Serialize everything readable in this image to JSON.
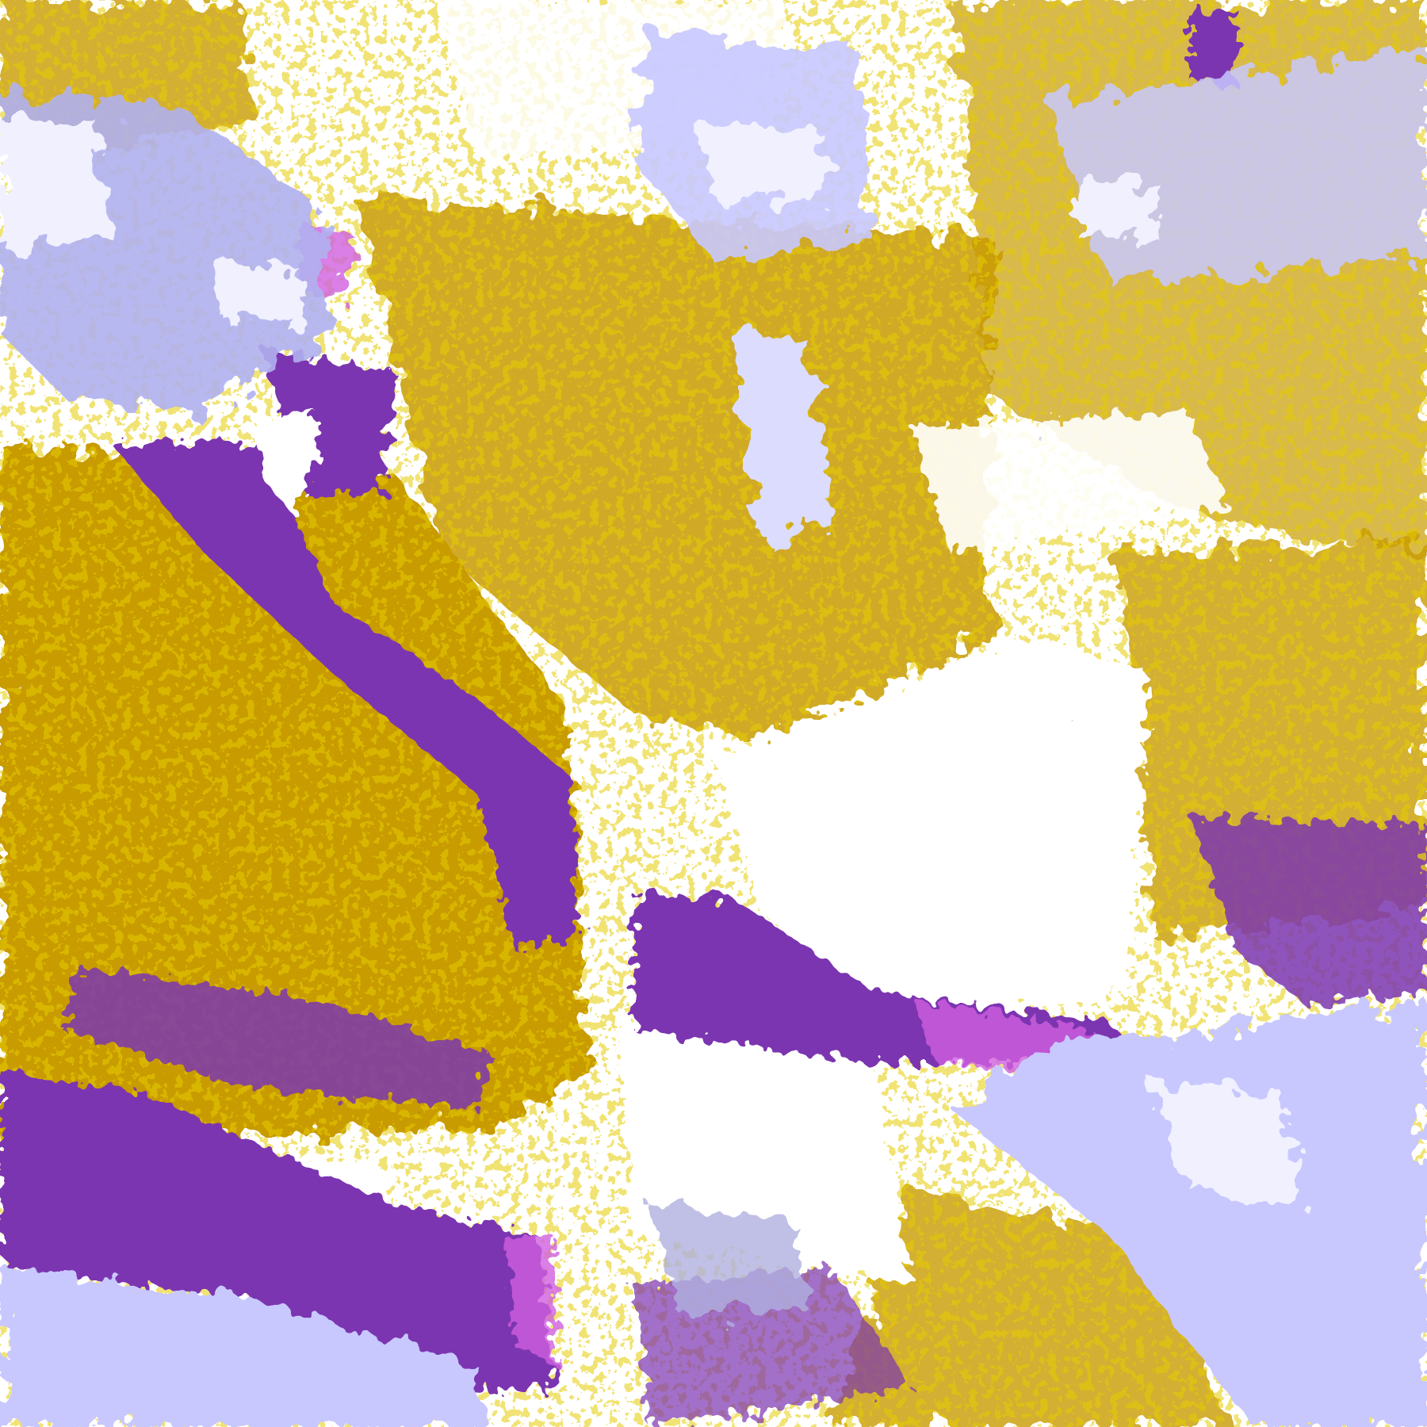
{
  "image": {
    "kind": "false-color satellite cloud classification",
    "palette": {
      "clear": "#ffffff",
      "low_cloud": "#c89b00",
      "mid_cloud": "#7b35b0",
      "thin_cirrus": "#d060e0",
      "high_cloud": "#c8c8ff",
      "very_high_cloud": "#f0f0ff",
      "edge_gray": "#a0a0a8",
      "cloud_blue": "#9a9af0"
    }
  }
}
